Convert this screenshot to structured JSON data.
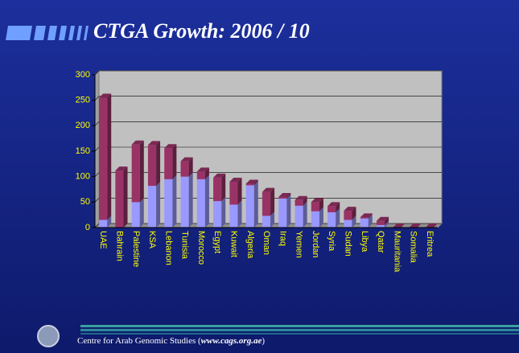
{
  "chart_data": {
    "type": "stacked_bar",
    "title": "CTGA Growth: 2006 / 10",
    "categories": [
      "UAE",
      "Bahrain",
      "Palestine",
      "KSA",
      "Lebanon",
      "Tunisia",
      "Morocco",
      "Egypt",
      "Kuwait",
      "Algeria",
      "Oman",
      "Iraq",
      "Yemen",
      "Jordan",
      "Syria",
      "Sudan",
      "Libya",
      "Qatar",
      "Mauritania",
      "Somalia",
      "Eritrea"
    ],
    "series": [
      {
        "color": "#9999ff",
        "values": [
          15,
          0,
          50,
          82,
          95,
          100,
          95,
          52,
          45,
          83,
          23,
          57,
          43,
          32,
          30,
          15,
          18,
          5,
          0,
          0,
          0
        ]
      },
      {
        "color": "#993366",
        "values": [
          240,
          112,
          113,
          80,
          61,
          30,
          15,
          46,
          45,
          3,
          47,
          3,
          11,
          18,
          12,
          18,
          2,
          8,
          0,
          0,
          0
        ]
      }
    ],
    "ylim": [
      0,
      300
    ],
    "yticks": [
      0,
      50,
      100,
      150,
      200,
      250,
      300
    ],
    "grid": true
  },
  "footer": [
    "Centre for Arab Genomic Studies (",
    "www.cags.org.ae",
    ")"
  ]
}
